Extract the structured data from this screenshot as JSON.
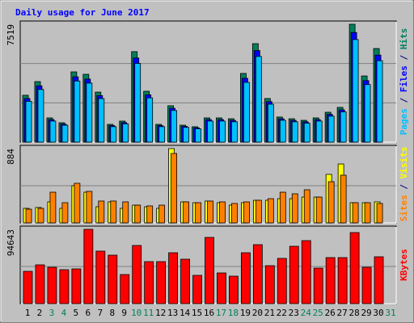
{
  "title": "Daily usage for June 2017",
  "legend_separator": " / ",
  "categories": [
    "1",
    "2",
    "3",
    "4",
    "5",
    "6",
    "7",
    "8",
    "9",
    "10",
    "11",
    "12",
    "13",
    "14",
    "15",
    "16",
    "17",
    "18",
    "19",
    "20",
    "21",
    "22",
    "23",
    "24",
    "25",
    "26",
    "27",
    "28",
    "29",
    "30",
    "31"
  ],
  "category_colors": [
    "#000000",
    "#000000",
    "#00805c",
    "#00805c",
    "#000000",
    "#000000",
    "#000000",
    "#000000",
    "#000000",
    "#00805c",
    "#00805c",
    "#000000",
    "#000000",
    "#000000",
    "#000000",
    "#000000",
    "#00805c",
    "#00805c",
    "#000000",
    "#000000",
    "#000000",
    "#000000",
    "#000000",
    "#00805c",
    "#00805c",
    "#000000",
    "#000000",
    "#000000",
    "#000000",
    "#000000",
    "#00805c"
  ],
  "chart_data": [
    {
      "type": "bar",
      "ylim": [
        0,
        7519
      ],
      "yticks": [
        7519
      ],
      "series": [
        {
          "name": "Hits",
          "color": "#00805c",
          "values": [
            2990,
            3860,
            1545,
            1236,
            4480,
            4325,
            3190,
            1133,
            1340,
            5770,
            3245,
            1133,
            2320,
            1080,
            980,
            1545,
            1545,
            1490,
            4380,
            6280,
            2780,
            1600,
            1490,
            1390,
            1545,
            1905,
            2215,
            7519,
            4220,
            5970,
            0
          ]
        },
        {
          "name": "Files",
          "color": "#0000ff",
          "values": [
            2781,
            3590,
            1437,
            1149,
            4166,
            4022,
            2967,
            1054,
            1246,
            5366,
            3018,
            1054,
            2158,
            1004,
            911,
            1437,
            1437,
            1386,
            4073,
            5840,
            2585,
            1488,
            1386,
            1293,
            1437,
            1772,
            2060,
            6993,
            3925,
            5552,
            0
          ]
        },
        {
          "name": "Pages",
          "color": "#00c0ff",
          "values": [
            2601,
            3358,
            1344,
            1075,
            3898,
            3763,
            2775,
            986,
            1166,
            5020,
            2823,
            986,
            2018,
            940,
            853,
            1344,
            1344,
            1296,
            3811,
            5464,
            2419,
            1392,
            1296,
            1209,
            1344,
            1657,
            1927,
            6542,
            3671,
            5194,
            0
          ]
        }
      ]
    },
    {
      "type": "bar",
      "ylim": [
        0,
        884
      ],
      "yticks": [
        884
      ],
      "series": [
        {
          "name": "Visits",
          "color": "#ffff00",
          "values": [
            173,
            183,
            250,
            173,
            442,
            365,
            192,
            250,
            173,
            211,
            192,
            173,
            884,
            250,
            240,
            260,
            240,
            211,
            240,
            269,
            269,
            288,
            288,
            307,
            307,
            577,
            701,
            240,
            240,
            250,
            0
          ]
        },
        {
          "name": "Sites",
          "color": "#ff8000",
          "values": [
            163,
            173,
            365,
            240,
            471,
            375,
            260,
            260,
            250,
            211,
            202,
            211,
            826,
            250,
            240,
            260,
            250,
            231,
            250,
            269,
            288,
            365,
            346,
            394,
            307,
            490,
            567,
            240,
            240,
            231,
            0
          ]
        }
      ]
    },
    {
      "type": "bar",
      "ylim": [
        0,
        94643
      ],
      "yticks": [
        94643
      ],
      "series": [
        {
          "name": "KBytes",
          "color": "#ff0000",
          "values": [
            41150,
            49380,
            46290,
            43210,
            44240,
            94643,
            66870,
            61720,
            37030,
            74070,
            53490,
            53490,
            64810,
            56580,
            36010,
            84350,
            39090,
            34980,
            64810,
            75100,
            48350,
            57610,
            73040,
            80240,
            45260,
            58640,
            58640,
            90530,
            46290,
            59670,
            0
          ]
        }
      ]
    }
  ]
}
